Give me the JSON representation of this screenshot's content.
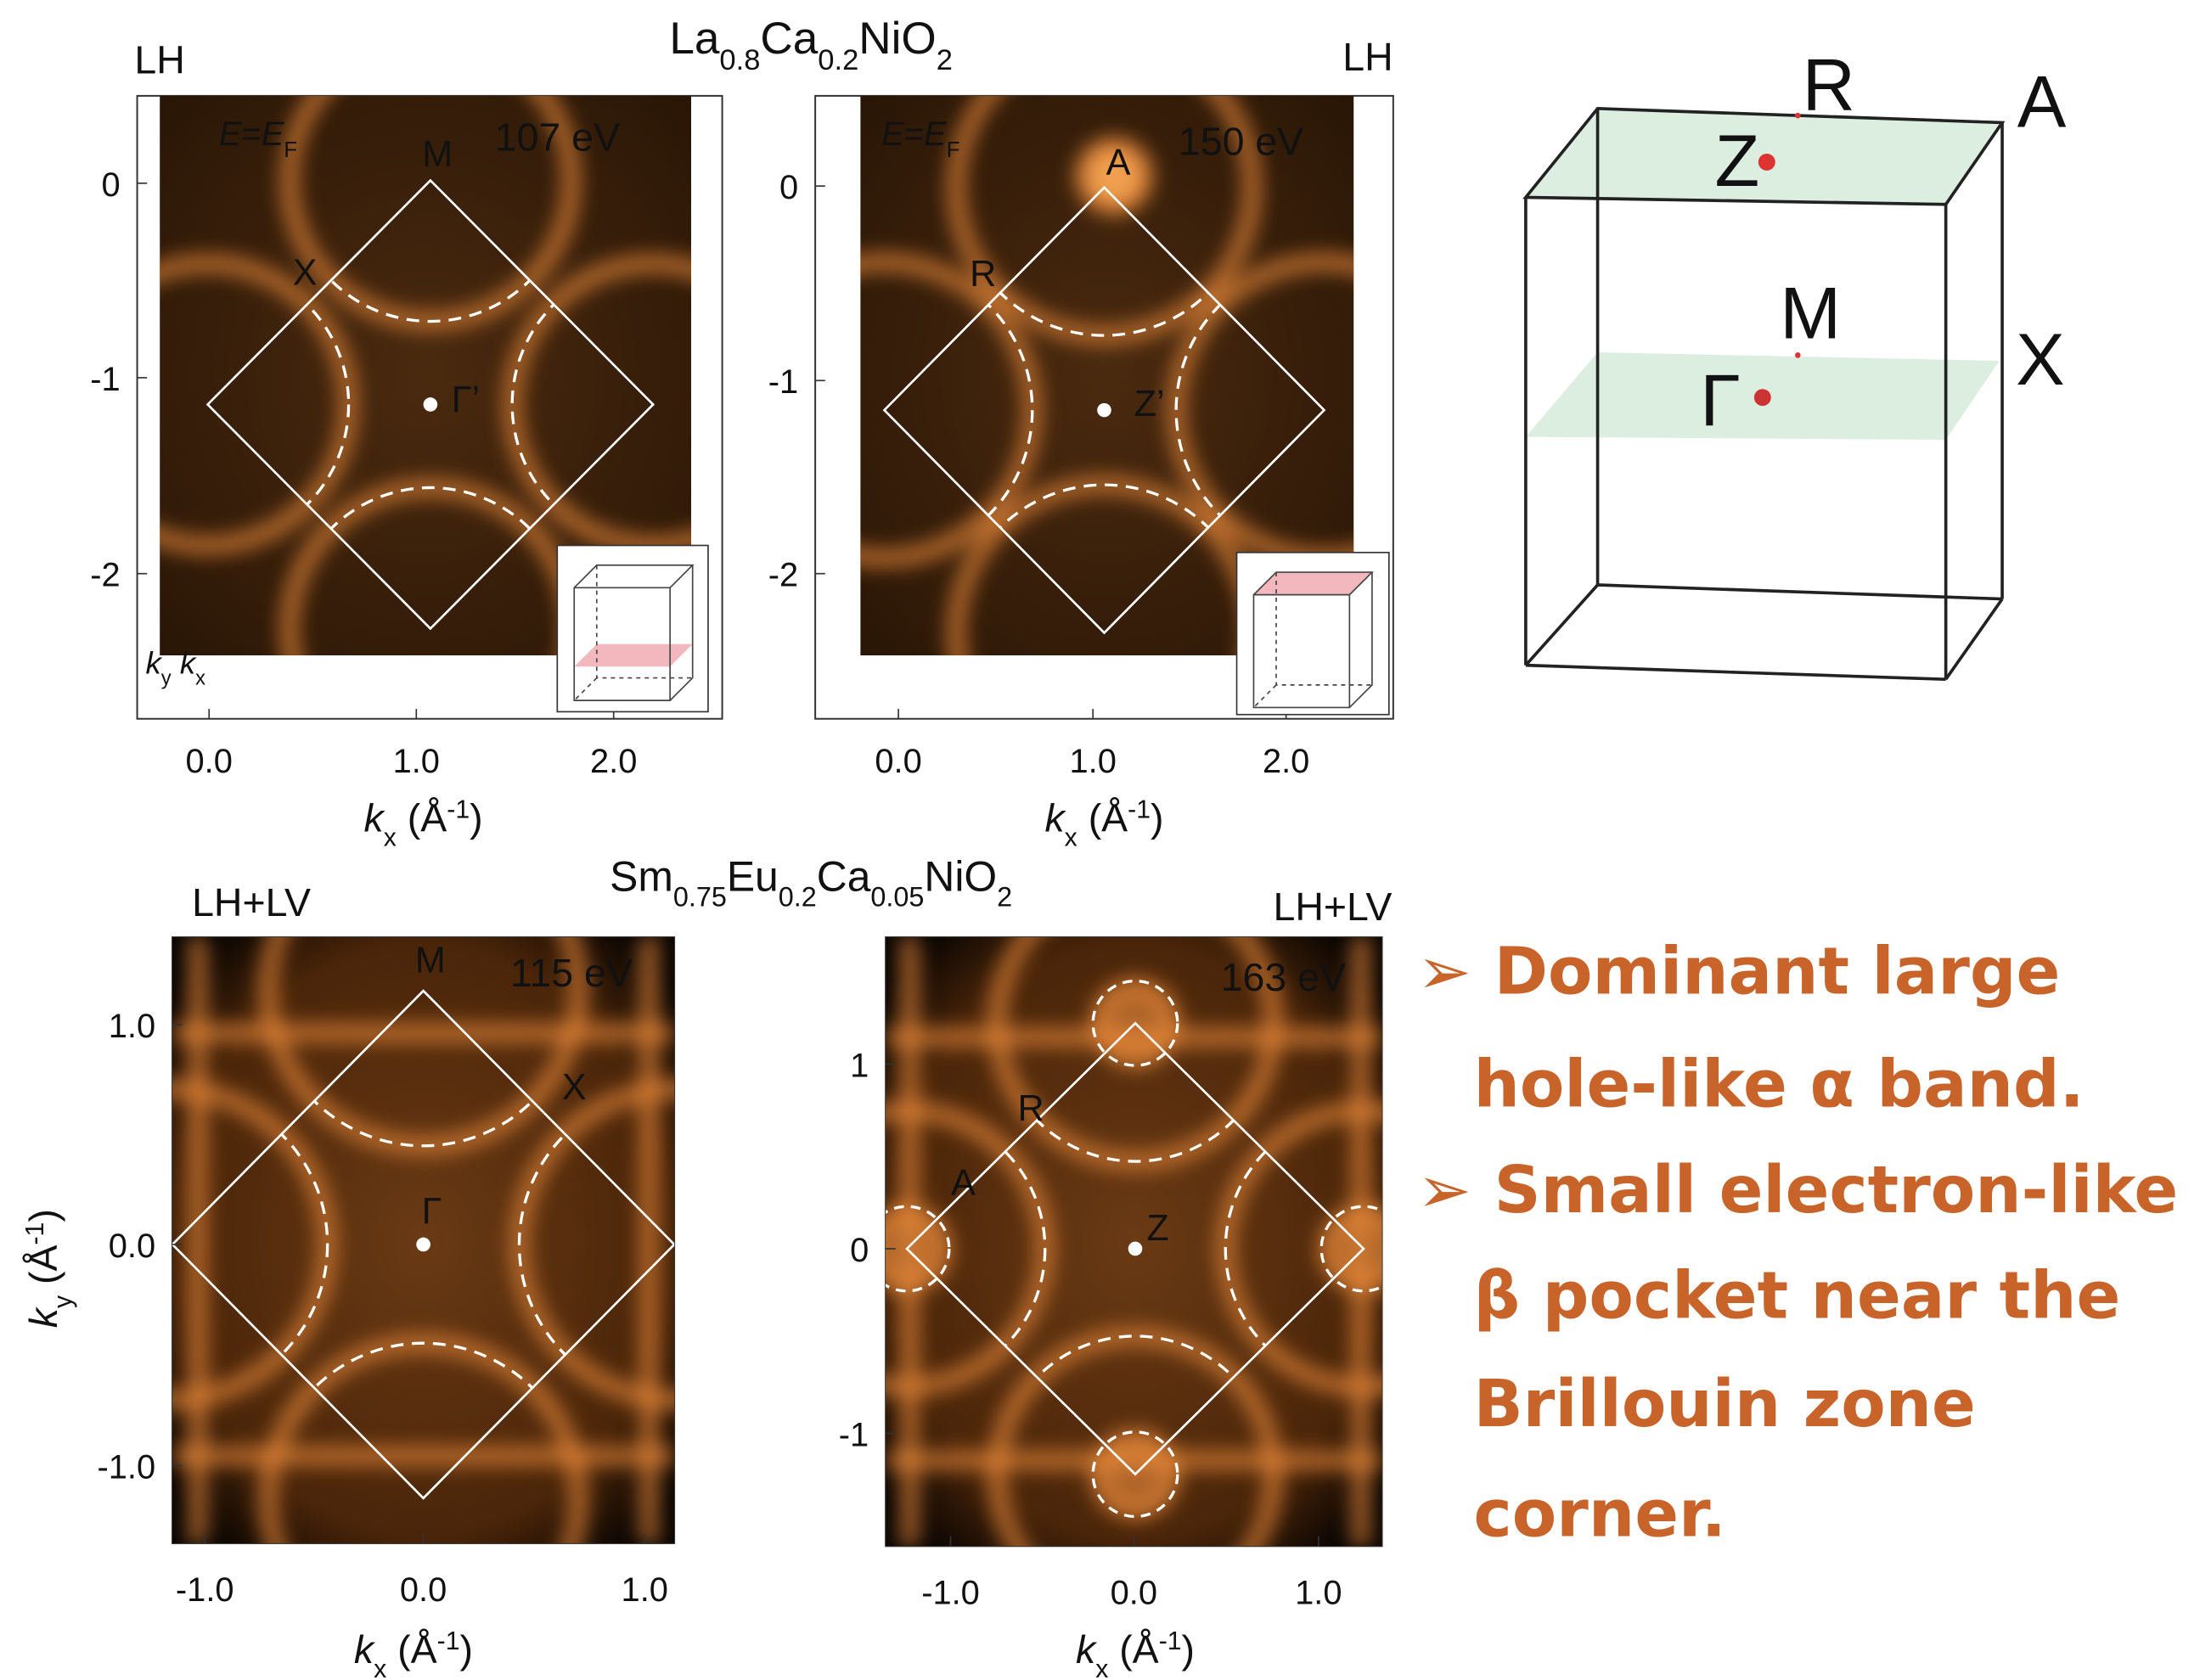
{
  "header": {
    "top_compound": [
      [
        "La",
        ""
      ],
      [
        "0.8",
        "sub"
      ],
      [
        "Ca",
        ""
      ],
      [
        "0.2",
        "sub"
      ],
      [
        "NiO",
        ""
      ],
      [
        "2",
        "sub"
      ]
    ],
    "bottom_compound": [
      [
        "Sm",
        ""
      ],
      [
        "0.75",
        "sub"
      ],
      [
        "Eu",
        ""
      ],
      [
        "0.2",
        "sub"
      ],
      [
        "Ca",
        ""
      ],
      [
        "0.05",
        "sub"
      ],
      [
        "NiO",
        ""
      ],
      [
        "2",
        "sub"
      ]
    ]
  },
  "panels": [
    {
      "polarization": "LH",
      "energy_label": [
        [
          "E",
          "i"
        ],
        [
          "=",
          ""
        ],
        [
          "E",
          "i"
        ],
        [
          "F",
          "sub"
        ]
      ],
      "photon_energy": "107 eV",
      "points": [
        "M",
        "X",
        "Γ’"
      ],
      "yticks": [
        "0",
        "-1",
        "-2"
      ],
      "xticks": [
        "0.0",
        "1.0",
        "2.0"
      ],
      "xlabel": [
        [
          "k",
          "i"
        ],
        [
          "x",
          "sub"
        ],
        [
          " (Å",
          ""
        ],
        [
          "-1",
          "sup"
        ],
        [
          ")",
          ""
        ]
      ],
      "corner_axes": [
        [
          "k",
          "i"
        ],
        [
          "y",
          "sub"
        ],
        [
          "  ",
          ""
        ],
        [
          "k",
          "i"
        ],
        [
          "x",
          "sub"
        ]
      ]
    },
    {
      "polarization": "LH",
      "energy_label": [
        [
          "E",
          "i"
        ],
        [
          "=",
          ""
        ],
        [
          "E",
          "i"
        ],
        [
          "F",
          "sub"
        ]
      ],
      "photon_energy": "150 eV",
      "points": [
        "A",
        "R",
        "Z’"
      ],
      "yticks": [
        "0",
        "-1",
        "-2"
      ],
      "xticks": [
        "0.0",
        "1.0",
        "2.0"
      ],
      "xlabel": [
        [
          "k",
          "i"
        ],
        [
          "x",
          "sub"
        ],
        [
          " (Å",
          ""
        ],
        [
          "-1",
          "sup"
        ],
        [
          ")",
          ""
        ]
      ]
    },
    {
      "polarization": "LH+LV",
      "photon_energy": "115 eV",
      "points": [
        "M",
        "X",
        "Γ"
      ],
      "yticks": [
        "1.0",
        "0.0",
        "-1.0"
      ],
      "xticks": [
        "-1.0",
        "0.0",
        "1.0"
      ],
      "xlabel": [
        [
          "k",
          "i"
        ],
        [
          "x",
          "sub"
        ],
        [
          " (Å",
          ""
        ],
        [
          "-1",
          "sup"
        ],
        [
          ")",
          ""
        ]
      ],
      "ylabel": [
        [
          "k",
          "i"
        ],
        [
          "y",
          "sub"
        ],
        [
          " (Å",
          ""
        ],
        [
          "-1",
          "sup"
        ],
        [
          ")",
          ""
        ]
      ]
    },
    {
      "polarization": "LH+LV",
      "photon_energy": "163 eV",
      "points": [
        "R",
        "A",
        "Z"
      ],
      "yticks": [
        "1",
        "0",
        "-1"
      ],
      "xticks": [
        "-1.0",
        "0.0",
        "1.0"
      ],
      "xlabel": [
        [
          "k",
          "i"
        ],
        [
          "x",
          "sub"
        ],
        [
          " (Å",
          ""
        ],
        [
          "-1",
          "sup"
        ],
        [
          ")",
          ""
        ]
      ]
    }
  ],
  "brillouin_zone": {
    "labels": [
      "R",
      "A",
      "Z",
      "M",
      "X",
      "Γ"
    ]
  },
  "bullets": [
    {
      "lines": [
        "➢ Dominant large",
        "hole-like α band."
      ]
    },
    {
      "lines": [
        "➢ Small electron-like",
        "β pocket near the",
        "Brillouin zone",
        "corner."
      ]
    }
  ]
}
